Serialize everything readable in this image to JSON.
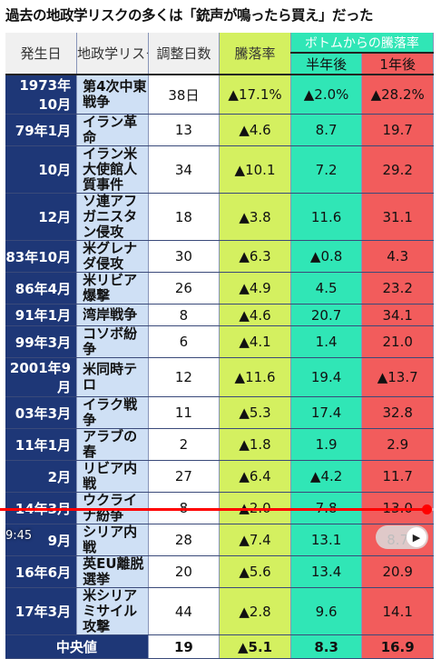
{
  "title": "過去の地政学リスクの多くは「銃声が鳴ったら買え」だった",
  "headers": {
    "date": "発生日",
    "name": "地政学リスク名",
    "days": "調整日数",
    "fall": "騰落率",
    "group": "ボトムからの騰落率",
    "half": "半年後",
    "year": "1年後"
  },
  "rows": [
    {
      "date": "1973年10月",
      "name": "第4次中東戦争",
      "days": "38日",
      "fall": "▲17.1%",
      "half": "▲2.0%",
      "year": "▲28.2%"
    },
    {
      "date": "79年1月",
      "name": "イラン革命",
      "days": "13",
      "fall": "▲4.6",
      "half": "8.7",
      "year": "19.7"
    },
    {
      "date": "10月",
      "name": "イラン米大使館人質事件",
      "days": "34",
      "fall": "▲10.1",
      "half": "7.2",
      "year": "29.2"
    },
    {
      "date": "12月",
      "name": "ソ連アフガニスタン侵攻",
      "days": "18",
      "fall": "▲3.8",
      "half": "11.6",
      "year": "31.1"
    },
    {
      "date": "83年10月",
      "name": "米グレナダ侵攻",
      "days": "30",
      "fall": "▲6.3",
      "half": "▲0.8",
      "year": "4.3"
    },
    {
      "date": "86年4月",
      "name": "米リビア爆撃",
      "days": "26",
      "fall": "▲4.9",
      "half": "4.5",
      "year": "23.2"
    },
    {
      "date": "91年1月",
      "name": "湾岸戦争",
      "days": "8",
      "fall": "▲4.6",
      "half": "20.7",
      "year": "34.1"
    },
    {
      "date": "99年3月",
      "name": "コソボ紛争",
      "days": "6",
      "fall": "▲4.1",
      "half": "1.4",
      "year": "21.0"
    },
    {
      "date": "2001年9月",
      "name": "米同時テロ",
      "days": "12",
      "fall": "▲11.6",
      "half": "19.4",
      "year": "▲13.7"
    },
    {
      "date": "03年3月",
      "name": "イラク戦争",
      "days": "11",
      "fall": "▲5.3",
      "half": "17.4",
      "year": "32.8"
    },
    {
      "date": "11年1月",
      "name": "アラブの春",
      "days": "2",
      "fall": "▲1.8",
      "half": "1.9",
      "year": "2.9"
    },
    {
      "date": "2月",
      "name": "リビア内戦",
      "days": "27",
      "fall": "▲6.4",
      "half": "▲4.2",
      "year": "11.7"
    },
    {
      "date": "14年3月",
      "name": "ウクライナ紛争",
      "days": "8",
      "fall": "▲2.0",
      "half": "7.8",
      "year": "13.0"
    },
    {
      "date": "9月",
      "name": "シリア内戦",
      "days": "28",
      "fall": "▲7.4",
      "half": "13.1",
      "year": "8.7"
    },
    {
      "date": "16年6月",
      "name": "英EU離脱選挙",
      "days": "20",
      "fall": "▲5.6",
      "half": "13.4",
      "year": "20.9"
    },
    {
      "date": "17年3月",
      "name": "米シリアミサイル攻撃",
      "days": "44",
      "fall": "▲2.8",
      "half": "9.6",
      "year": "14.1"
    }
  ],
  "footer": {
    "label": "中央値",
    "days": "19",
    "fall": "▲5.1",
    "half": "8.3",
    "year": "16.9"
  },
  "player": {
    "time": "9:45",
    "progress": 0.97
  }
}
